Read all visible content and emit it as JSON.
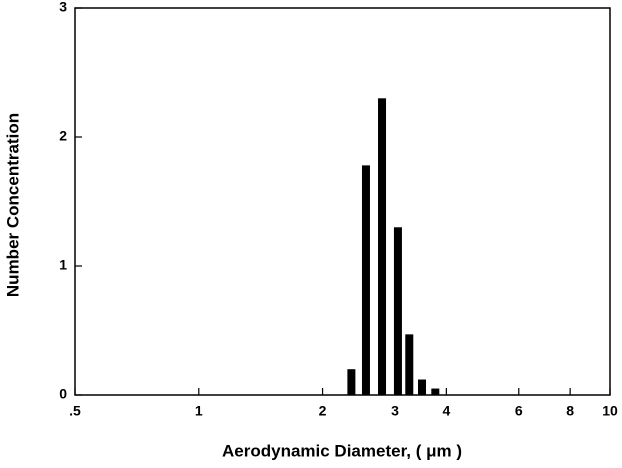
{
  "chart_data": {
    "type": "bar",
    "x_label": "Aerodynamic Diameter,  ( μm )",
    "y_label": "Number Concentration",
    "x": [
      2.35,
      2.55,
      2.79,
      3.05,
      3.25,
      3.49,
      3.76
    ],
    "values": [
      0.2,
      1.78,
      2.3,
      1.3,
      0.47,
      0.12,
      0.05
    ],
    "color": "#000000",
    "xscale": "log",
    "xlim": [
      0.5,
      10
    ],
    "xticks": [
      {
        "value": 0.5,
        "label": ".5"
      },
      1,
      2,
      3,
      4,
      6,
      8,
      10
    ],
    "ylim": [
      0,
      3
    ],
    "yticks": [
      0,
      1,
      2,
      3
    ],
    "grid": false
  }
}
